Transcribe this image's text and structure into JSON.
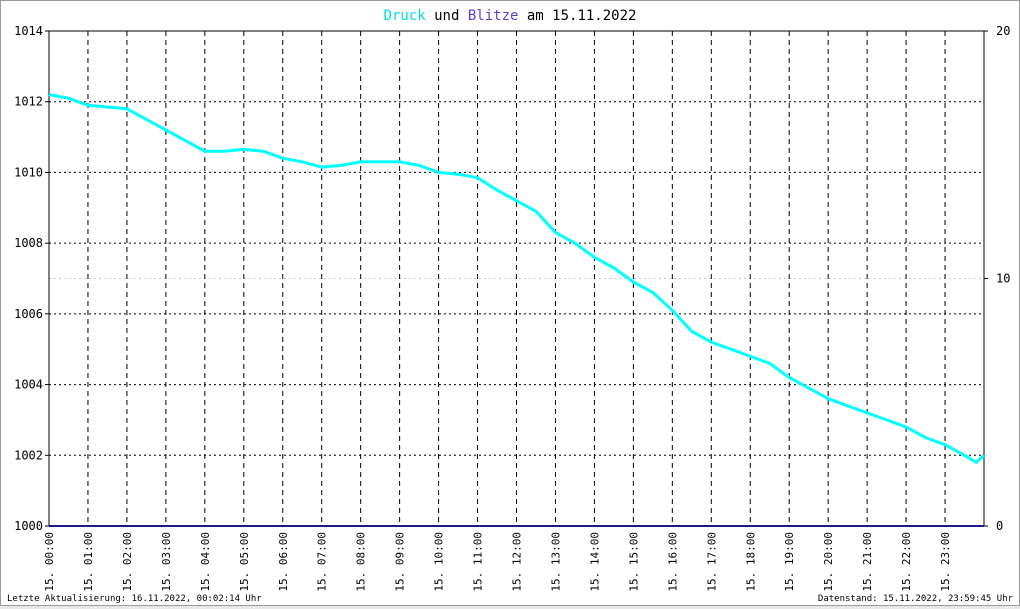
{
  "title": {
    "part1": "Druck",
    "part2": " und ",
    "part3": "Blitze",
    "part4": " am 15.11.2022"
  },
  "footer": {
    "left": "Letzte Aktualisierung: 16.11.2022, 00:02:14 Uhr",
    "right": "Datenstand: 15.11.2022, 23:59:45 Uhr"
  },
  "colors": {
    "druck": "#00ffff",
    "blitze": "#5a3fd6",
    "zero_line": "#1a1a8c",
    "grid": "#000000",
    "text": "#000000"
  },
  "chart_data": {
    "type": "line",
    "x_unit": "hour",
    "x_tick_labels": [
      "15. 00:00",
      "15. 01:00",
      "15. 02:00",
      "15. 03:00",
      "15. 04:00",
      "15. 05:00",
      "15. 06:00",
      "15. 07:00",
      "15. 08:00",
      "15. 09:00",
      "15. 10:00",
      "15. 11:00",
      "15. 12:00",
      "15. 13:00",
      "15. 14:00",
      "15. 15:00",
      "15. 16:00",
      "15. 17:00",
      "15. 18:00",
      "15. 19:00",
      "15. 20:00",
      "15. 21:00",
      "15. 22:00",
      "15. 23:00"
    ],
    "x_range": [
      0,
      24
    ],
    "y_left_ticks": [
      "1000",
      "1002",
      "1004",
      "1006",
      "1008",
      "1010",
      "1012",
      "1014"
    ],
    "y_left_range": [
      1000,
      1014
    ],
    "y_right_ticks": [
      "0",
      "10",
      "20"
    ],
    "y_right_range": [
      0,
      20
    ],
    "grid": true,
    "series": [
      {
        "name": "Druck",
        "axis": "left",
        "x": [
          0,
          0.5,
          1,
          1.5,
          2,
          2.5,
          3,
          3.5,
          4,
          4.5,
          5,
          5.5,
          6,
          6.5,
          7,
          7.5,
          8,
          8.5,
          9,
          9.5,
          10,
          10.5,
          11,
          11.5,
          12,
          12.5,
          13,
          13.5,
          14,
          14.5,
          15,
          15.5,
          16,
          16.5,
          17,
          17.5,
          18,
          18.5,
          19,
          19.5,
          20,
          20.5,
          21,
          21.5,
          22,
          22.5,
          23,
          23.5,
          23.8,
          24
        ],
        "values": [
          1012.2,
          1012.1,
          1011.9,
          1011.85,
          1011.8,
          1011.5,
          1011.2,
          1010.9,
          1010.6,
          1010.6,
          1010.65,
          1010.6,
          1010.4,
          1010.3,
          1010.15,
          1010.2,
          1010.3,
          1010.3,
          1010.3,
          1010.2,
          1010.0,
          1009.95,
          1009.85,
          1009.5,
          1009.2,
          1008.9,
          1008.3,
          1008.0,
          1007.6,
          1007.3,
          1006.9,
          1006.6,
          1006.1,
          1005.5,
          1005.2,
          1005.0,
          1004.8,
          1004.6,
          1004.2,
          1003.9,
          1003.6,
          1003.4,
          1003.2,
          1003.0,
          1002.8,
          1002.5,
          1002.3,
          1002.0,
          1001.8,
          1002.0
        ]
      },
      {
        "name": "Blitze",
        "axis": "right",
        "x": [
          0,
          24
        ],
        "values": [
          0,
          0
        ]
      }
    ]
  }
}
